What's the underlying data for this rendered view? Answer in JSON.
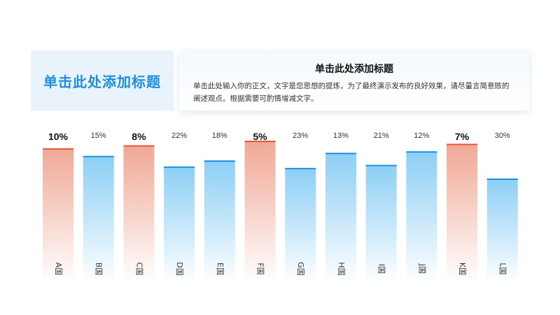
{
  "header": {
    "title": "单击此处添加标题",
    "subtitle": "单击此处添加标题",
    "body": "单击此处输入你的正文，文字是您思想的提炼，为了最终演示发布的良好效果，请尽量言简意赅的阐述观点。根据需要可酌情增减文字。"
  },
  "colors": {
    "accent": "#1e8fe0",
    "highlight_top": "#f0a896",
    "highlight_line": "#e8553a",
    "normal_top": "#8ccff5",
    "normal_line": "#1e8fe0"
  },
  "chart_data": {
    "type": "bar",
    "categories": [
      "A国",
      "B国",
      "C国",
      "D国",
      "E国",
      "F国",
      "G国",
      "H国",
      "I国",
      "J国",
      "K国",
      "L国"
    ],
    "labels": [
      "10%",
      "15%",
      "8%",
      "22%",
      "18%",
      "5%",
      "23%",
      "13%",
      "21%",
      "12%",
      "7%",
      "30%"
    ],
    "values": [
      10,
      15,
      8,
      22,
      18,
      5,
      23,
      13,
      21,
      12,
      7,
      30
    ],
    "highlighted": [
      "A国",
      "C国",
      "F国",
      "K国"
    ],
    "note": "bar heights decrease as percentage increases",
    "ylim": [
      0,
      35
    ],
    "grid": false,
    "legend": "none"
  }
}
